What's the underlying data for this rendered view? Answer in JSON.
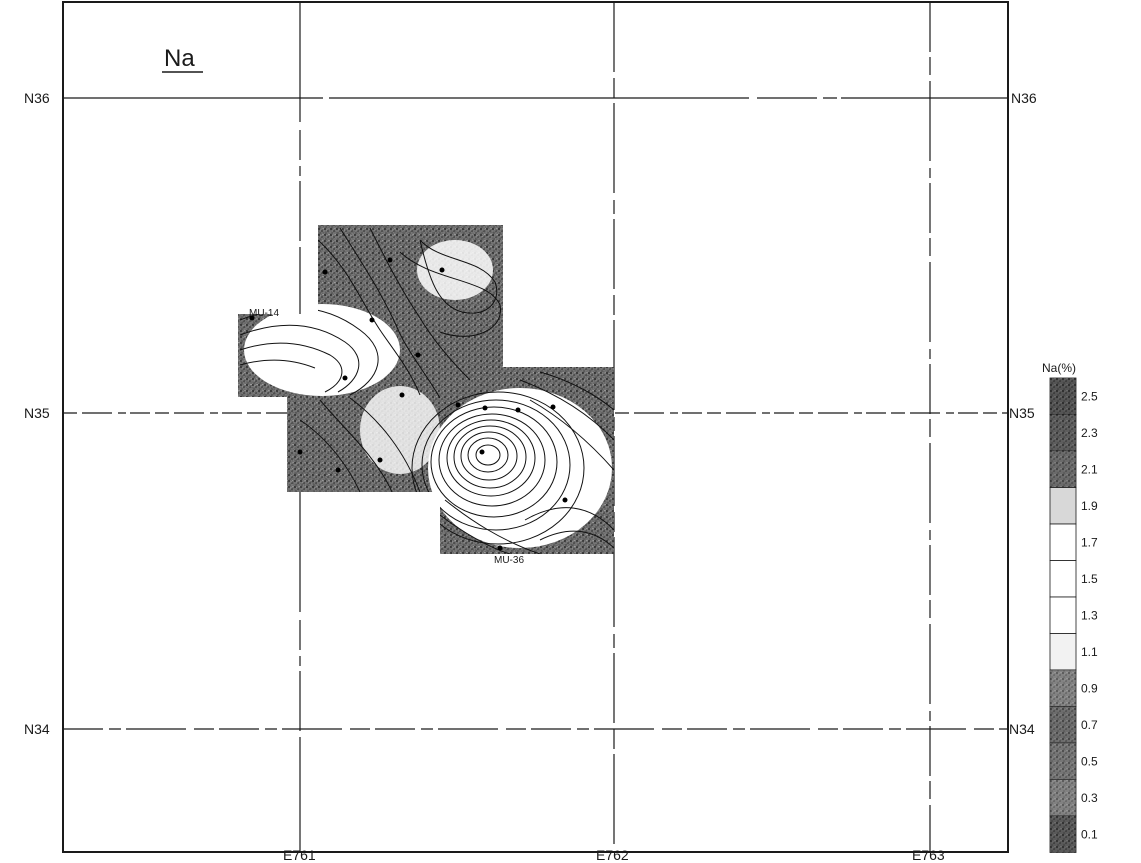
{
  "map": {
    "title": "Na",
    "element_symbol": "Na",
    "background_color": "#ffffff",
    "ink_color": "#1a1a1a",
    "northing_gridlines": [
      "N36",
      "N35",
      "N34"
    ],
    "easting_gridlines": [
      "E761",
      "E762",
      "E763"
    ],
    "sample_labels": [
      "MU-14",
      "MU-36"
    ]
  },
  "legend": {
    "title": "Na(%)",
    "values": [
      "2.5",
      "2.3",
      "2.1",
      "1.9",
      "1.7",
      "1.5",
      "1.3",
      "1.1",
      "0.9",
      "0.7",
      "0.5",
      "0.3",
      "0.1"
    ],
    "shades": [
      "#262626",
      "#3a3a3a",
      "#575757",
      "#d8d8d8",
      "#ffffff",
      "#ffffff",
      "#ffffff",
      "#f2f2f2",
      "#8c8c8c",
      "#5a5a5a",
      "#6e6e6e",
      "#8a8a8a",
      "#303030"
    ]
  }
}
